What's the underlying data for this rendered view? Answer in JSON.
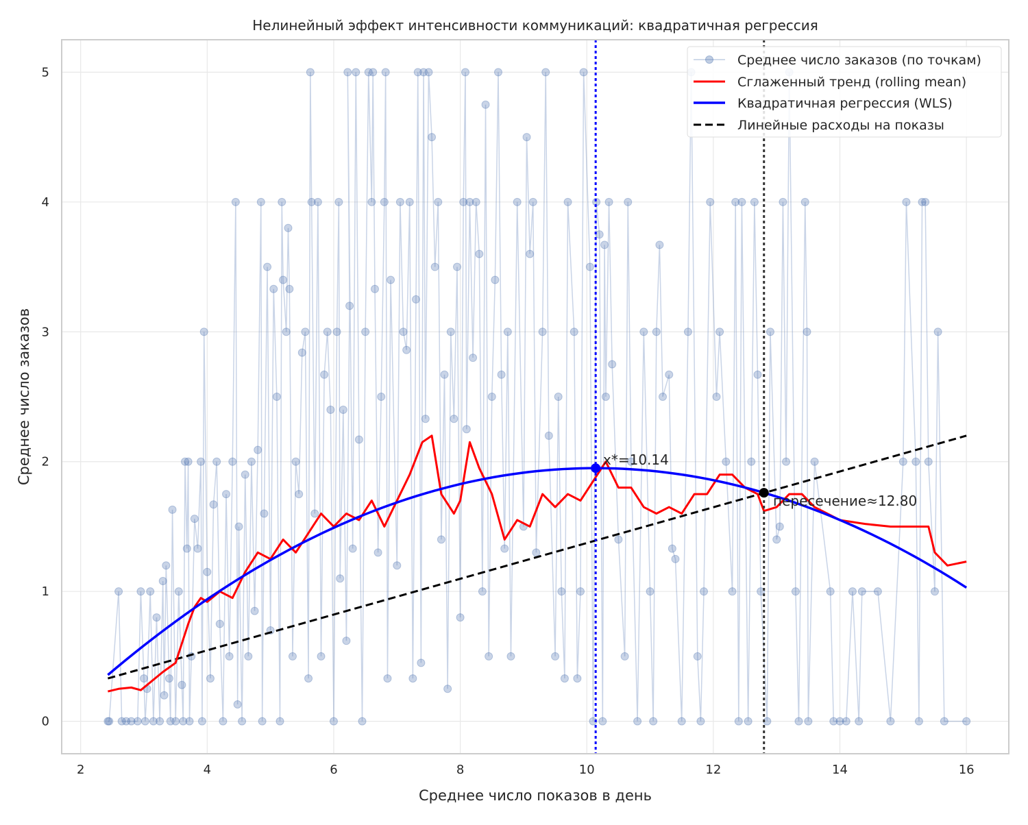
{
  "chart_data": {
    "type": "line",
    "title": "Нелинейный эффект интенсивности коммуникаций: квадратичная регрессия",
    "xlabel": "Среднее число показов в день",
    "ylabel": "Среднее число заказов",
    "xlim": [
      1.7,
      16.67
    ],
    "ylim": [
      -0.25,
      5.25
    ],
    "xticks": [
      2,
      4,
      6,
      8,
      10,
      12,
      14,
      16
    ],
    "yticks": [
      0,
      1,
      2,
      3,
      4,
      5
    ],
    "grid": true,
    "legend_position": "top-right",
    "legend": [
      "Среднее число заказов (по точкам)",
      "Сглаженный тренд (rolling mean)",
      "Квадратичная регрессия (WLS)",
      "Линейные расходы на показы"
    ],
    "colors": {
      "points": "#4c72b0",
      "trend": "#ff0000",
      "regression": "#0000ff",
      "cost": "#000000",
      "optimum_line": "#0000ff",
      "intersection_line": "#333333"
    },
    "series": {
      "points": [
        [
          2.43,
          0
        ],
        [
          2.45,
          0
        ],
        [
          2.6,
          1
        ],
        [
          2.65,
          0
        ],
        [
          2.72,
          0
        ],
        [
          2.8,
          0
        ],
        [
          2.9,
          0
        ],
        [
          2.95,
          1
        ],
        [
          3.0,
          0.33
        ],
        [
          3.02,
          0
        ],
        [
          3.05,
          0.25
        ],
        [
          3.1,
          1
        ],
        [
          3.15,
          0
        ],
        [
          3.2,
          0.8
        ],
        [
          3.25,
          0
        ],
        [
          3.3,
          1.08
        ],
        [
          3.32,
          0.2
        ],
        [
          3.35,
          1.2
        ],
        [
          3.4,
          0.33
        ],
        [
          3.42,
          0
        ],
        [
          3.45,
          1.63
        ],
        [
          3.5,
          0
        ],
        [
          3.55,
          1
        ],
        [
          3.6,
          0.28
        ],
        [
          3.62,
          0
        ],
        [
          3.65,
          2
        ],
        [
          3.68,
          1.33
        ],
        [
          3.7,
          2
        ],
        [
          3.72,
          0
        ],
        [
          3.75,
          0.5
        ],
        [
          3.8,
          1.56
        ],
        [
          3.85,
          1.33
        ],
        [
          3.9,
          2
        ],
        [
          3.92,
          0
        ],
        [
          3.95,
          3
        ],
        [
          4.0,
          1.15
        ],
        [
          4.05,
          0.33
        ],
        [
          4.1,
          1.67
        ],
        [
          4.15,
          2
        ],
        [
          4.2,
          0.75
        ],
        [
          4.25,
          0
        ],
        [
          4.3,
          1.75
        ],
        [
          4.35,
          0.5
        ],
        [
          4.4,
          2
        ],
        [
          4.45,
          4
        ],
        [
          4.48,
          0.13
        ],
        [
          4.5,
          1.5
        ],
        [
          4.55,
          0
        ],
        [
          4.6,
          1.9
        ],
        [
          4.65,
          0.5
        ],
        [
          4.7,
          2
        ],
        [
          4.75,
          0.85
        ],
        [
          4.8,
          2.09
        ],
        [
          4.85,
          4
        ],
        [
          4.87,
          0
        ],
        [
          4.9,
          1.6
        ],
        [
          4.95,
          3.5
        ],
        [
          5.0,
          0.7
        ],
        [
          5.05,
          3.33
        ],
        [
          5.1,
          2.5
        ],
        [
          5.15,
          0
        ],
        [
          5.18,
          4
        ],
        [
          5.2,
          3.4
        ],
        [
          5.25,
          3
        ],
        [
          5.28,
          3.8
        ],
        [
          5.3,
          3.33
        ],
        [
          5.35,
          0.5
        ],
        [
          5.4,
          2
        ],
        [
          5.45,
          1.75
        ],
        [
          5.5,
          2.84
        ],
        [
          5.55,
          3
        ],
        [
          5.6,
          0.33
        ],
        [
          5.63,
          5
        ],
        [
          5.65,
          4
        ],
        [
          5.7,
          1.6
        ],
        [
          5.75,
          4
        ],
        [
          5.8,
          0.5
        ],
        [
          5.85,
          2.67
        ],
        [
          5.9,
          3
        ],
        [
          5.95,
          2.4
        ],
        [
          6.0,
          0
        ],
        [
          6.05,
          3
        ],
        [
          6.08,
          4
        ],
        [
          6.1,
          1.1
        ],
        [
          6.15,
          2.4
        ],
        [
          6.2,
          0.62
        ],
        [
          6.25,
          3.2
        ],
        [
          6.22,
          5
        ],
        [
          6.3,
          1.33
        ],
        [
          6.35,
          5
        ],
        [
          6.4,
          2.17
        ],
        [
          6.45,
          0
        ],
        [
          6.5,
          3
        ],
        [
          6.55,
          5
        ],
        [
          6.6,
          4
        ],
        [
          6.62,
          5
        ],
        [
          6.65,
          3.33
        ],
        [
          6.7,
          1.3
        ],
        [
          6.75,
          2.5
        ],
        [
          6.8,
          4
        ],
        [
          6.82,
          5
        ],
        [
          6.85,
          0.33
        ],
        [
          6.9,
          3.4
        ],
        [
          7.0,
          1.2
        ],
        [
          7.05,
          4
        ],
        [
          7.1,
          3
        ],
        [
          7.15,
          2.86
        ],
        [
          7.2,
          4
        ],
        [
          7.25,
          0.33
        ],
        [
          7.3,
          3.25
        ],
        [
          7.33,
          5
        ],
        [
          7.38,
          0.45
        ],
        [
          7.42,
          5
        ],
        [
          7.45,
          2.33
        ],
        [
          7.5,
          5
        ],
        [
          7.55,
          4.5
        ],
        [
          7.6,
          3.5
        ],
        [
          7.65,
          4
        ],
        [
          7.7,
          1.4
        ],
        [
          7.75,
          2.67
        ],
        [
          7.8,
          0.25
        ],
        [
          7.85,
          3
        ],
        [
          7.9,
          2.33
        ],
        [
          7.95,
          3.5
        ],
        [
          8.0,
          0.8
        ],
        [
          8.05,
          4
        ],
        [
          8.08,
          5
        ],
        [
          8.1,
          2.25
        ],
        [
          8.15,
          4
        ],
        [
          8.2,
          2.8
        ],
        [
          8.25,
          4
        ],
        [
          8.3,
          3.6
        ],
        [
          8.35,
          1
        ],
        [
          8.4,
          4.75
        ],
        [
          8.45,
          0.5
        ],
        [
          8.5,
          2.5
        ],
        [
          8.55,
          3.4
        ],
        [
          8.6,
          5
        ],
        [
          8.65,
          2.67
        ],
        [
          8.7,
          1.33
        ],
        [
          8.75,
          3
        ],
        [
          8.8,
          0.5
        ],
        [
          8.9,
          4
        ],
        [
          9.0,
          1.5
        ],
        [
          9.05,
          4.5
        ],
        [
          9.1,
          3.6
        ],
        [
          9.15,
          4
        ],
        [
          9.2,
          1.3
        ],
        [
          9.3,
          3
        ],
        [
          9.35,
          5
        ],
        [
          9.4,
          2.2
        ],
        [
          9.5,
          0.5
        ],
        [
          9.55,
          2.5
        ],
        [
          9.6,
          1
        ],
        [
          9.65,
          0.33
        ],
        [
          9.7,
          4
        ],
        [
          9.8,
          3
        ],
        [
          9.85,
          0.33
        ],
        [
          9.9,
          1
        ],
        [
          9.95,
          5
        ],
        [
          10.05,
          3.5
        ],
        [
          10.1,
          0
        ],
        [
          10.15,
          4
        ],
        [
          10.2,
          3.75
        ],
        [
          10.25,
          0
        ],
        [
          10.28,
          3.67
        ],
        [
          10.3,
          2.5
        ],
        [
          10.35,
          4
        ],
        [
          10.4,
          2.75
        ],
        [
          10.5,
          1.4
        ],
        [
          10.6,
          0.5
        ],
        [
          10.65,
          4
        ],
        [
          10.7,
          2
        ],
        [
          10.8,
          0
        ],
        [
          10.9,
          3
        ],
        [
          11.0,
          1
        ],
        [
          11.05,
          0
        ],
        [
          11.1,
          3
        ],
        [
          11.15,
          3.67
        ],
        [
          11.2,
          2.5
        ],
        [
          11.3,
          2.67
        ],
        [
          11.35,
          1.33
        ],
        [
          11.4,
          1.25
        ],
        [
          11.5,
          0
        ],
        [
          11.6,
          3
        ],
        [
          11.65,
          5
        ],
        [
          11.75,
          0.5
        ],
        [
          11.8,
          0
        ],
        [
          11.85,
          1
        ],
        [
          11.95,
          4
        ],
        [
          12.05,
          2.5
        ],
        [
          12.1,
          3
        ],
        [
          12.2,
          2
        ],
        [
          12.3,
          1
        ],
        [
          12.35,
          4
        ],
        [
          12.4,
          0
        ],
        [
          12.45,
          4
        ],
        [
          12.55,
          0
        ],
        [
          12.6,
          2
        ],
        [
          12.65,
          4
        ],
        [
          12.7,
          2.67
        ],
        [
          12.75,
          1
        ],
        [
          12.85,
          0
        ],
        [
          12.9,
          3
        ],
        [
          13.0,
          1.4
        ],
        [
          13.05,
          1.5
        ],
        [
          13.1,
          4
        ],
        [
          13.15,
          2
        ],
        [
          13.2,
          5
        ],
        [
          13.3,
          1
        ],
        [
          13.35,
          0
        ],
        [
          13.45,
          4
        ],
        [
          13.48,
          3
        ],
        [
          13.5,
          0
        ],
        [
          13.6,
          2
        ],
        [
          13.85,
          1
        ],
        [
          13.9,
          0
        ],
        [
          14.0,
          0
        ],
        [
          14.1,
          0
        ],
        [
          14.2,
          1
        ],
        [
          14.3,
          0
        ],
        [
          14.35,
          1
        ],
        [
          14.6,
          1
        ],
        [
          14.8,
          0
        ],
        [
          15.0,
          2
        ],
        [
          15.05,
          4
        ],
        [
          15.2,
          2
        ],
        [
          15.25,
          0
        ],
        [
          15.3,
          4
        ],
        [
          15.35,
          4
        ],
        [
          15.4,
          2
        ],
        [
          15.5,
          1
        ],
        [
          15.55,
          3
        ],
        [
          15.65,
          0
        ],
        [
          16.0,
          0
        ]
      ],
      "trend": [
        [
          2.43,
          0.23
        ],
        [
          2.6,
          0.25
        ],
        [
          2.8,
          0.26
        ],
        [
          2.95,
          0.24
        ],
        [
          3.1,
          0.3
        ],
        [
          3.3,
          0.38
        ],
        [
          3.5,
          0.45
        ],
        [
          3.6,
          0.6
        ],
        [
          3.7,
          0.75
        ],
        [
          3.8,
          0.88
        ],
        [
          3.9,
          0.95
        ],
        [
          4.0,
          0.92
        ],
        [
          4.2,
          1.0
        ],
        [
          4.4,
          0.95
        ],
        [
          4.6,
          1.15
        ],
        [
          4.8,
          1.3
        ],
        [
          5.0,
          1.25
        ],
        [
          5.2,
          1.4
        ],
        [
          5.4,
          1.3
        ],
        [
          5.6,
          1.45
        ],
        [
          5.8,
          1.6
        ],
        [
          6.0,
          1.5
        ],
        [
          6.2,
          1.6
        ],
        [
          6.4,
          1.55
        ],
        [
          6.6,
          1.7
        ],
        [
          6.8,
          1.5
        ],
        [
          7.0,
          1.7
        ],
        [
          7.2,
          1.9
        ],
        [
          7.4,
          2.15
        ],
        [
          7.55,
          2.2
        ],
        [
          7.7,
          1.75
        ],
        [
          7.9,
          1.6
        ],
        [
          8.0,
          1.7
        ],
        [
          8.15,
          2.15
        ],
        [
          8.3,
          1.95
        ],
        [
          8.5,
          1.75
        ],
        [
          8.7,
          1.4
        ],
        [
          8.9,
          1.55
        ],
        [
          9.1,
          1.5
        ],
        [
          9.3,
          1.75
        ],
        [
          9.5,
          1.65
        ],
        [
          9.7,
          1.75
        ],
        [
          9.9,
          1.7
        ],
        [
          10.1,
          1.85
        ],
        [
          10.3,
          2.0
        ],
        [
          10.5,
          1.8
        ],
        [
          10.7,
          1.8
        ],
        [
          10.9,
          1.65
        ],
        [
          11.1,
          1.6
        ],
        [
          11.3,
          1.65
        ],
        [
          11.5,
          1.6
        ],
        [
          11.7,
          1.75
        ],
        [
          11.9,
          1.75
        ],
        [
          12.1,
          1.9
        ],
        [
          12.3,
          1.9
        ],
        [
          12.5,
          1.8
        ],
        [
          12.7,
          1.75
        ],
        [
          12.8,
          1.62
        ],
        [
          13.0,
          1.65
        ],
        [
          13.2,
          1.75
        ],
        [
          13.4,
          1.75
        ],
        [
          13.6,
          1.65
        ],
        [
          13.8,
          1.6
        ],
        [
          14.0,
          1.55
        ],
        [
          14.4,
          1.52
        ],
        [
          14.8,
          1.5
        ],
        [
          15.0,
          1.5
        ],
        [
          15.4,
          1.5
        ],
        [
          15.5,
          1.3
        ],
        [
          15.7,
          1.2
        ],
        [
          16.0,
          1.23
        ]
      ],
      "regression": {
        "vertex_x": 10.14,
        "vertex_y": 1.95,
        "curvature": -0.0268,
        "x_range": [
          2.43,
          16.0
        ]
      },
      "cost_line": {
        "start": [
          2.43,
          0.33
        ],
        "end": [
          16.0,
          2.2
        ]
      }
    },
    "annotations": {
      "optimum": {
        "x": 10.14,
        "label": "x*=10.14"
      },
      "intersection": {
        "x": 12.8,
        "label": "пересечение≈12.80"
      }
    }
  }
}
